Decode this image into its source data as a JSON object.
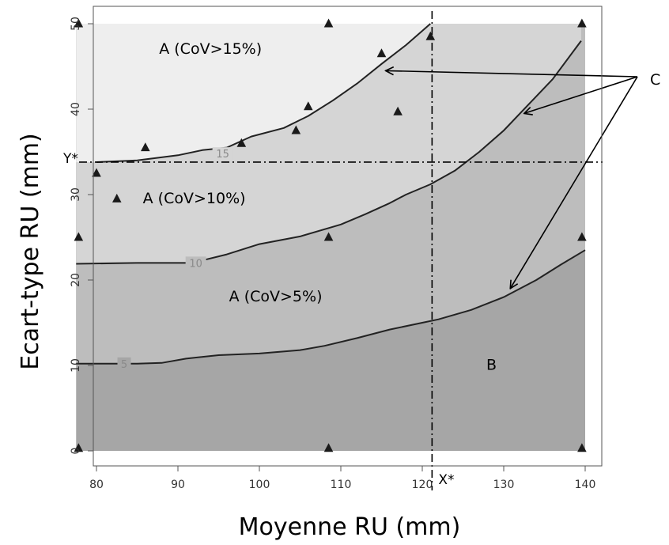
{
  "chart_data": {
    "type": "contour",
    "xlabel": "Moyenne RU (mm)",
    "ylabel": "Ecart-type RU (mm)",
    "xlim": [
      77.5,
      140
    ],
    "ylim": [
      0,
      50
    ],
    "xticks": [
      80,
      90,
      100,
      110,
      120,
      130,
      140
    ],
    "yticks": [
      0,
      10,
      20,
      30,
      40,
      50
    ],
    "colors": {
      "zone_b": "#a6a6a6",
      "zone_cov5": "#bdbdbd",
      "zone_cov10": "#d5d5d5",
      "zone_cov15": "#eeeeee",
      "line": "#222222",
      "points": "#1a1a1a"
    },
    "contours": [
      {
        "level_label": "5",
        "points": [
          [
            77.5,
            10.2
          ],
          [
            80,
            10.2
          ],
          [
            85,
            10.2
          ],
          [
            88,
            10.3
          ],
          [
            91,
            10.8
          ],
          [
            95,
            11.2
          ],
          [
            100,
            11.4
          ],
          [
            105,
            11.8
          ],
          [
            108,
            12.3
          ],
          [
            112,
            13.2
          ],
          [
            116,
            14.2
          ],
          [
            120,
            15.0
          ],
          [
            122,
            15.4
          ],
          [
            126,
            16.5
          ],
          [
            130,
            18.0
          ],
          [
            134,
            20.0
          ],
          [
            137,
            21.8
          ],
          [
            140,
            23.5
          ]
        ]
      },
      {
        "level_label": "10",
        "points": [
          [
            77.5,
            21.9
          ],
          [
            85,
            22.0
          ],
          [
            91,
            22.0
          ],
          [
            93,
            22.3
          ],
          [
            96,
            23.0
          ],
          [
            100,
            24.2
          ],
          [
            105,
            25.1
          ],
          [
            110,
            26.5
          ],
          [
            113,
            27.7
          ],
          [
            116,
            29.0
          ],
          [
            118,
            30.0
          ],
          [
            121,
            31.2
          ],
          [
            124,
            32.8
          ],
          [
            127,
            35.0
          ],
          [
            130,
            37.5
          ],
          [
            133,
            40.5
          ],
          [
            136,
            43.5
          ],
          [
            139.5,
            48.0
          ]
        ]
      },
      {
        "level_label": "15",
        "points": [
          [
            80,
            33.8
          ],
          [
            85,
            34.0
          ],
          [
            90,
            34.6
          ],
          [
            93,
            35.2
          ],
          [
            96,
            35.5
          ],
          [
            99,
            36.8
          ],
          [
            103,
            37.8
          ],
          [
            106,
            39.2
          ],
          [
            109,
            41.0
          ],
          [
            112,
            43.0
          ],
          [
            115,
            45.3
          ],
          [
            118,
            47.5
          ],
          [
            121,
            50.0
          ]
        ]
      }
    ],
    "points": [
      [
        77.8,
        50
      ],
      [
        77.8,
        25
      ],
      [
        77.8,
        0.3
      ],
      [
        80,
        32.5
      ],
      [
        82.5,
        29.5
      ],
      [
        86,
        35.5
      ],
      [
        97.8,
        36
      ],
      [
        104.5,
        37.5
      ],
      [
        106,
        40.3
      ],
      [
        108.5,
        50
      ],
      [
        108.5,
        25
      ],
      [
        108.5,
        0.3
      ],
      [
        115,
        46.5
      ],
      [
        117,
        39.7
      ],
      [
        121,
        48.5
      ],
      [
        139.6,
        50
      ],
      [
        139.6,
        25
      ],
      [
        139.6,
        0.3
      ]
    ],
    "reference_lines": {
      "x_star": {
        "label": "X*",
        "value": 121.2
      },
      "y_star": {
        "label": "Y*",
        "value": 33.8
      }
    },
    "regions": [
      {
        "label": "A (CoV>15%)",
        "x": 94,
        "y": 46.5
      },
      {
        "label": "A (CoV>10%)",
        "x": 92,
        "y": 29
      },
      {
        "label": "A (CoV>5%)",
        "x": 102,
        "y": 17.5
      },
      {
        "label": "B",
        "x": 128.5,
        "y": 9.5
      }
    ],
    "annotation": {
      "label": "C",
      "arrow_targets": [
        [
          115.5,
          44.5
        ],
        [
          132.5,
          39.5
        ],
        [
          130.8,
          19.0
        ]
      ]
    }
  }
}
